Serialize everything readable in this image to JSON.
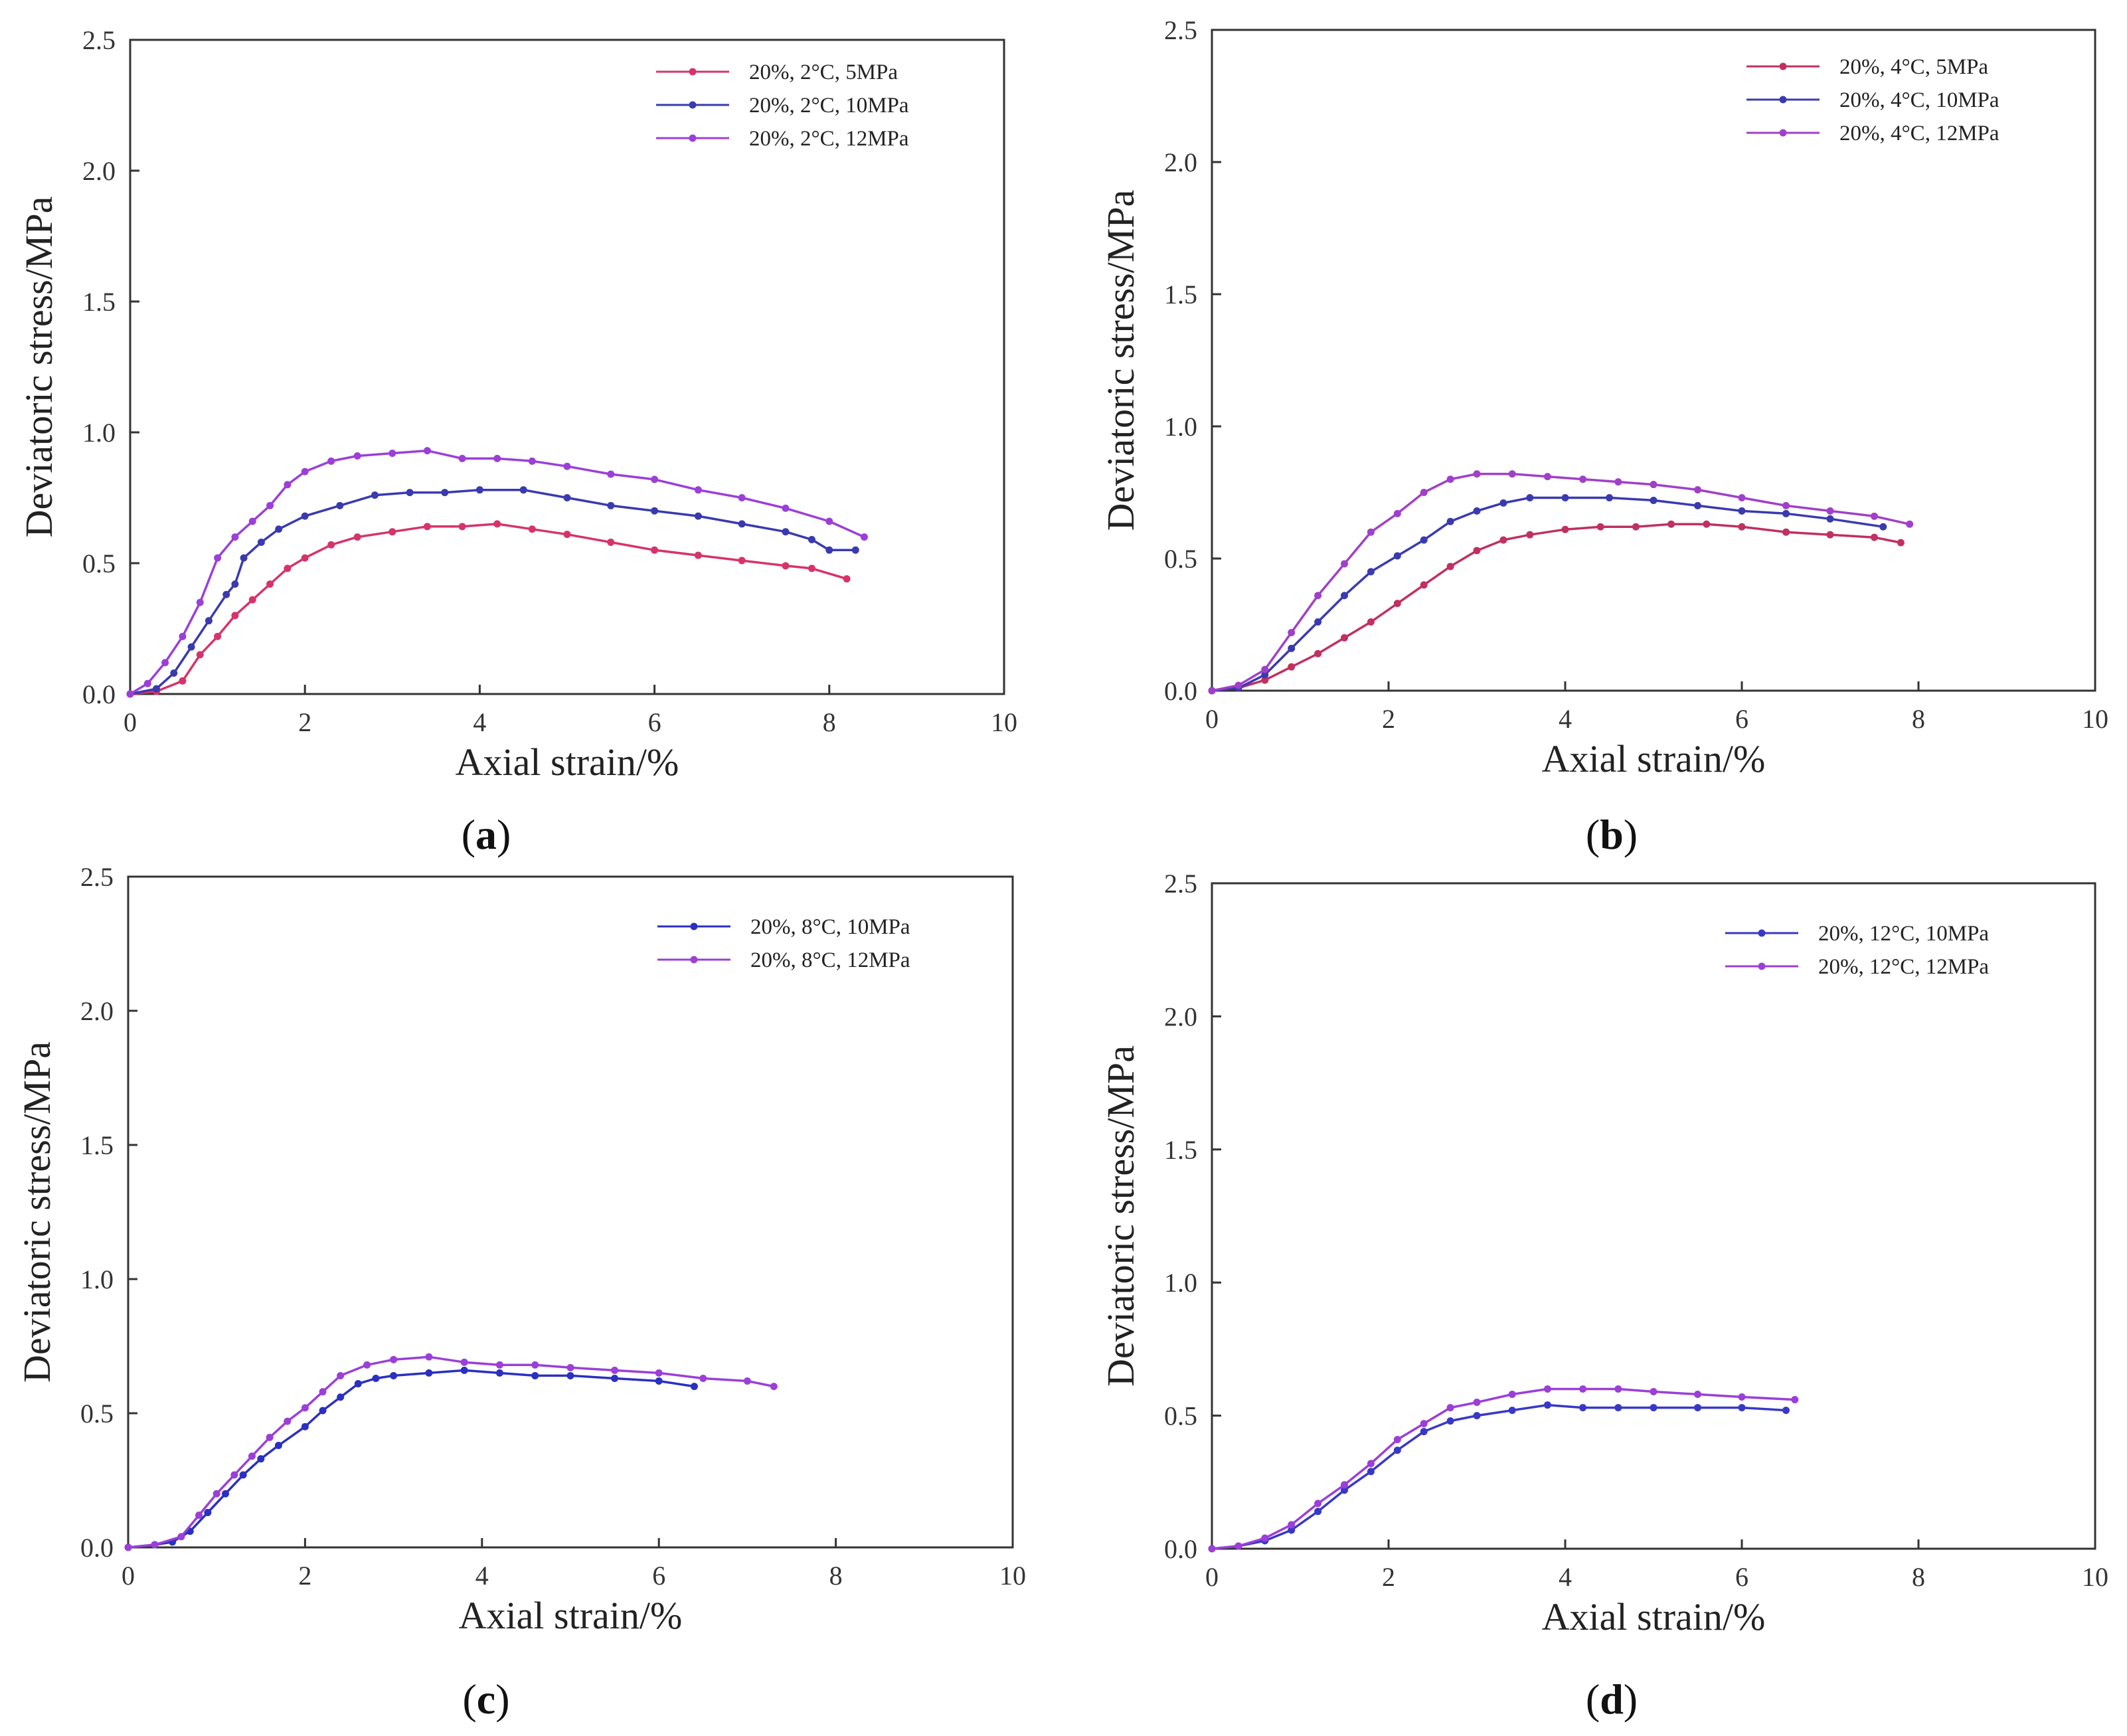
{
  "chart_data": [
    {
      "type": "line",
      "panel_label": "a",
      "xlabel": "Axial strain/%",
      "ylabel": "Deviatoric stress/MPa",
      "xlim": [
        0,
        10
      ],
      "ylim": [
        0,
        2.5
      ],
      "xticks": [
        0,
        2,
        4,
        6,
        8,
        10
      ],
      "yticks": [
        0.0,
        0.5,
        1.0,
        1.5,
        2.0,
        2.5
      ],
      "legend_position": "top-right",
      "series": [
        {
          "name": "20%, 2°C, 5MPa",
          "color": "#d6336c",
          "x": [
            0,
            0.3,
            0.6,
            0.8,
            1.0,
            1.2,
            1.4,
            1.6,
            1.8,
            2.0,
            2.3,
            2.6,
            3.0,
            3.4,
            3.8,
            4.2,
            4.6,
            5.0,
            5.5,
            6.0,
            6.5,
            7.0,
            7.5,
            7.8,
            8.2
          ],
          "y": [
            0,
            0.01,
            0.05,
            0.15,
            0.22,
            0.3,
            0.36,
            0.42,
            0.48,
            0.52,
            0.57,
            0.6,
            0.62,
            0.64,
            0.64,
            0.65,
            0.63,
            0.61,
            0.58,
            0.55,
            0.53,
            0.51,
            0.49,
            0.48,
            0.44
          ]
        },
        {
          "name": "20%, 2°C, 10MPa",
          "color": "#3a3ab0",
          "x": [
            0,
            0.3,
            0.5,
            0.7,
            0.9,
            1.1,
            1.2,
            1.3,
            1.5,
            1.7,
            2.0,
            2.4,
            2.8,
            3.2,
            3.6,
            4.0,
            4.5,
            5.0,
            5.5,
            6.0,
            6.5,
            7.0,
            7.5,
            7.8,
            8.0,
            8.3
          ],
          "y": [
            0,
            0.02,
            0.08,
            0.18,
            0.28,
            0.38,
            0.42,
            0.52,
            0.58,
            0.63,
            0.68,
            0.72,
            0.76,
            0.77,
            0.77,
            0.78,
            0.78,
            0.75,
            0.72,
            0.7,
            0.68,
            0.65,
            0.62,
            0.59,
            0.55,
            0.55
          ]
        },
        {
          "name": "20%, 2°C, 12MPa",
          "color": "#9b3fd8",
          "x": [
            0,
            0.2,
            0.4,
            0.6,
            0.8,
            1.0,
            1.2,
            1.4,
            1.6,
            1.8,
            2.0,
            2.3,
            2.6,
            3.0,
            3.4,
            3.8,
            4.2,
            4.6,
            5.0,
            5.5,
            6.0,
            6.5,
            7.0,
            7.5,
            8.0,
            8.4
          ],
          "y": [
            0,
            0.04,
            0.12,
            0.22,
            0.35,
            0.52,
            0.6,
            0.66,
            0.72,
            0.8,
            0.85,
            0.89,
            0.91,
            0.92,
            0.93,
            0.9,
            0.9,
            0.89,
            0.87,
            0.84,
            0.82,
            0.78,
            0.75,
            0.71,
            0.66,
            0.6
          ]
        }
      ]
    },
    {
      "type": "line",
      "panel_label": "b",
      "xlabel": "Axial strain/%",
      "ylabel": "Deviatoric stress/MPa",
      "xlim": [
        0,
        10
      ],
      "ylim": [
        0,
        2.5
      ],
      "xticks": [
        0,
        2,
        4,
        6,
        8,
        10
      ],
      "yticks": [
        0.0,
        0.5,
        1.0,
        1.5,
        2.0,
        2.5
      ],
      "legend_position": "top-right",
      "series": [
        {
          "name": "20%, 4°C, 5MPa",
          "color": "#c03060",
          "x": [
            0,
            0.3,
            0.6,
            0.9,
            1.2,
            1.5,
            1.8,
            2.1,
            2.4,
            2.7,
            3.0,
            3.3,
            3.6,
            4.0,
            4.4,
            4.8,
            5.2,
            5.6,
            6.0,
            6.5,
            7.0,
            7.5,
            7.8
          ],
          "y": [
            0,
            0.01,
            0.04,
            0.09,
            0.14,
            0.2,
            0.26,
            0.33,
            0.4,
            0.47,
            0.53,
            0.57,
            0.59,
            0.61,
            0.62,
            0.62,
            0.63,
            0.63,
            0.62,
            0.6,
            0.59,
            0.58,
            0.56
          ]
        },
        {
          "name": "20%, 4°C, 10MPa",
          "color": "#3a3ab0",
          "x": [
            0,
            0.3,
            0.6,
            0.9,
            1.2,
            1.5,
            1.8,
            2.1,
            2.4,
            2.7,
            3.0,
            3.3,
            3.6,
            4.0,
            4.5,
            5.0,
            5.5,
            6.0,
            6.5,
            7.0,
            7.6
          ],
          "y": [
            0,
            0.01,
            0.06,
            0.16,
            0.26,
            0.36,
            0.45,
            0.51,
            0.57,
            0.64,
            0.68,
            0.71,
            0.73,
            0.73,
            0.73,
            0.72,
            0.7,
            0.68,
            0.67,
            0.65,
            0.62
          ]
        },
        {
          "name": "20%, 4°C, 12MPa",
          "color": "#a040c8",
          "x": [
            0,
            0.3,
            0.6,
            0.9,
            1.2,
            1.5,
            1.8,
            2.1,
            2.4,
            2.7,
            3.0,
            3.4,
            3.8,
            4.2,
            4.6,
            5.0,
            5.5,
            6.0,
            6.5,
            7.0,
            7.5,
            7.9
          ],
          "y": [
            0,
            0.02,
            0.08,
            0.22,
            0.36,
            0.48,
            0.6,
            0.67,
            0.75,
            0.8,
            0.82,
            0.82,
            0.81,
            0.8,
            0.79,
            0.78,
            0.76,
            0.73,
            0.7,
            0.68,
            0.66,
            0.63
          ]
        }
      ]
    },
    {
      "type": "line",
      "panel_label": "c",
      "xlabel": "Axial strain/%",
      "ylabel": "Deviatoric stress/MPa",
      "xlim": [
        0,
        10
      ],
      "ylim": [
        0,
        2.5
      ],
      "xticks": [
        0,
        2,
        4,
        6,
        8,
        10
      ],
      "yticks": [
        0.0,
        0.5,
        1.0,
        1.5,
        2.0,
        2.5
      ],
      "legend_position": "top-right",
      "series": [
        {
          "name": "20%, 8°C, 10MPa",
          "color": "#2a30c0",
          "x": [
            0,
            0.3,
            0.5,
            0.7,
            0.9,
            1.1,
            1.3,
            1.5,
            1.7,
            2.0,
            2.2,
            2.4,
            2.6,
            2.8,
            3.0,
            3.4,
            3.8,
            4.2,
            4.6,
            5.0,
            5.5,
            6.0,
            6.4
          ],
          "y": [
            0,
            0.01,
            0.02,
            0.06,
            0.13,
            0.2,
            0.27,
            0.33,
            0.38,
            0.45,
            0.51,
            0.56,
            0.61,
            0.63,
            0.64,
            0.65,
            0.66,
            0.65,
            0.64,
            0.64,
            0.63,
            0.62,
            0.6
          ]
        },
        {
          "name": "20%, 8°C, 12MPa",
          "color": "#9b3fd8",
          "x": [
            0,
            0.3,
            0.6,
            0.8,
            1.0,
            1.2,
            1.4,
            1.6,
            1.8,
            2.0,
            2.2,
            2.4,
            2.7,
            3.0,
            3.4,
            3.8,
            4.2,
            4.6,
            5.0,
            5.5,
            6.0,
            6.5,
            7.0,
            7.3
          ],
          "y": [
            0,
            0.01,
            0.04,
            0.12,
            0.2,
            0.27,
            0.34,
            0.41,
            0.47,
            0.52,
            0.58,
            0.64,
            0.68,
            0.7,
            0.71,
            0.69,
            0.68,
            0.68,
            0.67,
            0.66,
            0.65,
            0.63,
            0.62,
            0.6
          ]
        }
      ]
    },
    {
      "type": "line",
      "panel_label": "d",
      "xlabel": "Axial strain/%",
      "ylabel": "Deviatoric stress/MPa",
      "xlim": [
        0,
        10
      ],
      "ylim": [
        0,
        2.5
      ],
      "xticks": [
        0,
        2,
        4,
        6,
        8,
        10
      ],
      "yticks": [
        0.0,
        0.5,
        1.0,
        1.5,
        2.0,
        2.5
      ],
      "legend_position": "top-right",
      "series": [
        {
          "name": "20%, 12°C, 10MPa",
          "color": "#3838c8",
          "x": [
            0,
            0.3,
            0.6,
            0.9,
            1.2,
            1.5,
            1.8,
            2.1,
            2.4,
            2.7,
            3.0,
            3.4,
            3.8,
            4.2,
            4.6,
            5.0,
            5.5,
            6.0,
            6.5
          ],
          "y": [
            0,
            0.01,
            0.03,
            0.07,
            0.14,
            0.22,
            0.29,
            0.37,
            0.44,
            0.48,
            0.5,
            0.52,
            0.54,
            0.53,
            0.53,
            0.53,
            0.53,
            0.53,
            0.52
          ]
        },
        {
          "name": "20%, 12°C, 12MPa",
          "color": "#9b3fd8",
          "x": [
            0,
            0.3,
            0.6,
            0.9,
            1.2,
            1.5,
            1.8,
            2.1,
            2.4,
            2.7,
            3.0,
            3.4,
            3.8,
            4.2,
            4.6,
            5.0,
            5.5,
            6.0,
            6.6
          ],
          "y": [
            0,
            0.01,
            0.04,
            0.09,
            0.17,
            0.24,
            0.32,
            0.41,
            0.47,
            0.53,
            0.55,
            0.58,
            0.6,
            0.6,
            0.6,
            0.59,
            0.58,
            0.57,
            0.56
          ]
        }
      ]
    }
  ]
}
